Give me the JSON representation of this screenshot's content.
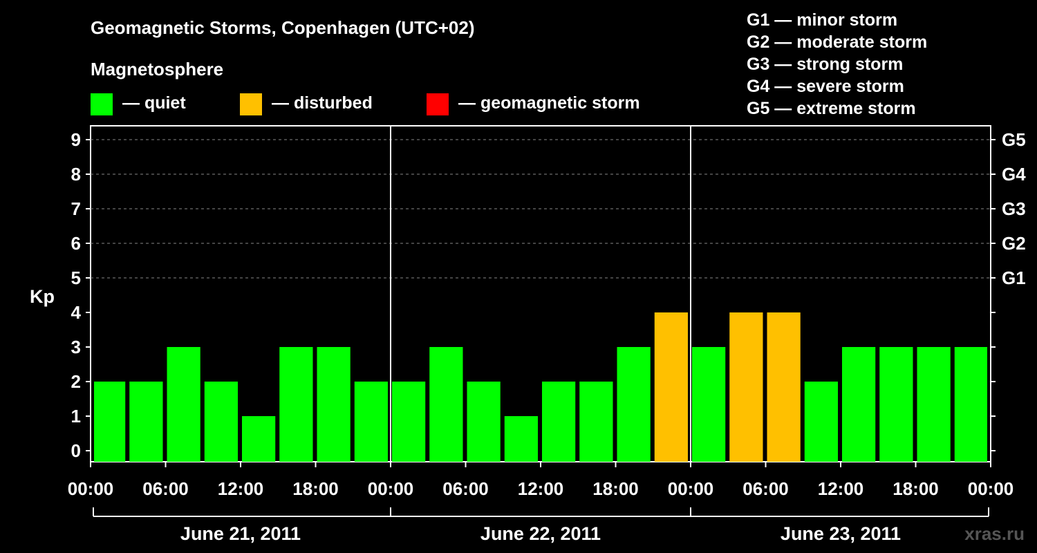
{
  "title": "Geomagnetic Storms, Copenhagen (UTC+02)",
  "legend": {
    "heading": "Magnetosphere",
    "items": [
      {
        "label": "— quiet",
        "color": "#00ff00"
      },
      {
        "label": "— disturbed",
        "color": "#ffc000"
      },
      {
        "label": "— geomagnetic storm",
        "color": "#ff0000"
      }
    ]
  },
  "storm_scale": [
    "G1 — minor storm",
    "G2 — moderate storm",
    "G3 — strong storm",
    "G4 — severe storm",
    "G5 — extreme storm"
  ],
  "watermark": "xras.ru",
  "chart_data": {
    "type": "bar",
    "ylabel": "Kp",
    "ylim": [
      0,
      9
    ],
    "yticks": [
      "0",
      "1",
      "2",
      "3",
      "4",
      "5",
      "6",
      "7",
      "8",
      "9"
    ],
    "right_ticks": [
      {
        "value": 5,
        "label": "G1"
      },
      {
        "value": 6,
        "label": "G2"
      },
      {
        "value": 7,
        "label": "G3"
      },
      {
        "value": 8,
        "label": "G4"
      },
      {
        "value": 9,
        "label": "G5"
      }
    ],
    "grid": "dashed horizontal lines at Kp 5 to 9",
    "x_tick_labels": [
      "00:00",
      "06:00",
      "12:00",
      "18:00",
      "00:00",
      "06:00",
      "12:00",
      "18:00",
      "00:00",
      "06:00",
      "12:00",
      "18:00",
      "00:00"
    ],
    "days": [
      "June 21, 2011",
      "June 22, 2011",
      "June 23, 2011"
    ],
    "bars": [
      {
        "start": "2011-06-21 00:00",
        "kp": 2,
        "status": "quiet"
      },
      {
        "start": "2011-06-21 03:00",
        "kp": 2,
        "status": "quiet"
      },
      {
        "start": "2011-06-21 06:00",
        "kp": 3,
        "status": "quiet"
      },
      {
        "start": "2011-06-21 09:00",
        "kp": 2,
        "status": "quiet"
      },
      {
        "start": "2011-06-21 12:00",
        "kp": 1,
        "status": "quiet"
      },
      {
        "start": "2011-06-21 15:00",
        "kp": 3,
        "status": "quiet"
      },
      {
        "start": "2011-06-21 18:00",
        "kp": 3,
        "status": "quiet"
      },
      {
        "start": "2011-06-21 21:00",
        "kp": 2,
        "status": "quiet"
      },
      {
        "start": "2011-06-22 00:00",
        "kp": 2,
        "status": "quiet"
      },
      {
        "start": "2011-06-22 03:00",
        "kp": 3,
        "status": "quiet"
      },
      {
        "start": "2011-06-22 06:00",
        "kp": 2,
        "status": "quiet"
      },
      {
        "start": "2011-06-22 09:00",
        "kp": 1,
        "status": "quiet"
      },
      {
        "start": "2011-06-22 12:00",
        "kp": 2,
        "status": "quiet"
      },
      {
        "start": "2011-06-22 15:00",
        "kp": 2,
        "status": "quiet"
      },
      {
        "start": "2011-06-22 18:00",
        "kp": 3,
        "status": "quiet"
      },
      {
        "start": "2011-06-22 21:00",
        "kp": 4,
        "status": "disturbed"
      },
      {
        "start": "2011-06-23 00:00",
        "kp": 3,
        "status": "quiet"
      },
      {
        "start": "2011-06-23 03:00",
        "kp": 4,
        "status": "disturbed"
      },
      {
        "start": "2011-06-23 06:00",
        "kp": 4,
        "status": "disturbed"
      },
      {
        "start": "2011-06-23 09:00",
        "kp": 2,
        "status": "quiet"
      },
      {
        "start": "2011-06-23 12:00",
        "kp": 3,
        "status": "quiet"
      },
      {
        "start": "2011-06-23 15:00",
        "kp": 3,
        "status": "quiet"
      },
      {
        "start": "2011-06-23 18:00",
        "kp": 3,
        "status": "quiet"
      },
      {
        "start": "2011-06-23 21:00",
        "kp": 3,
        "status": "quiet"
      }
    ],
    "status_colors": {
      "quiet": "#00ff00",
      "disturbed": "#ffc000",
      "storm": "#ff0000"
    }
  }
}
